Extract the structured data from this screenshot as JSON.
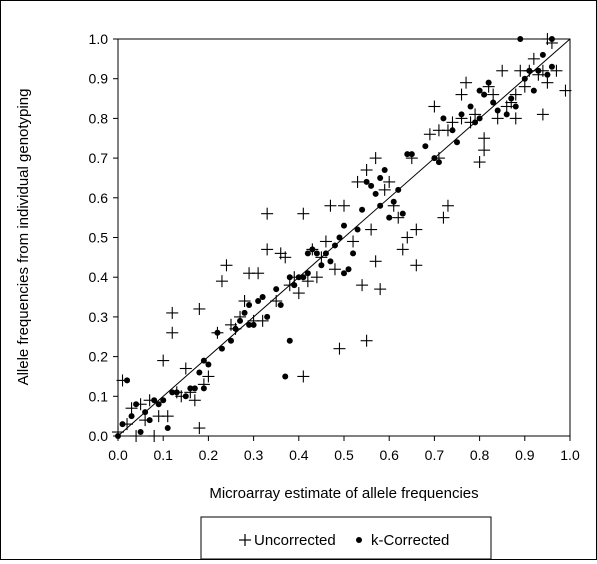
{
  "chart_data": {
    "type": "scatter",
    "title": "",
    "xlabel": "Microarray estimate of allele frequencies",
    "ylabel": "Allele frequencies from individual genotyping",
    "xlim": [
      0.0,
      1.0
    ],
    "ylim": [
      0.0,
      1.0
    ],
    "x_ticks": [
      "0.0",
      "0.1",
      "0.2",
      "0.3",
      "0.4",
      "0.5",
      "0.6",
      "0.7",
      "0.8",
      "0.9",
      "1.0"
    ],
    "y_ticks": [
      "0.0",
      "0.1",
      "0.2",
      "0.3",
      "0.4",
      "0.5",
      "0.6",
      "0.7",
      "0.8",
      "0.9",
      "1.0"
    ],
    "grid": false,
    "legend_position": "bottom",
    "reference_line": {
      "from": [
        0,
        0
      ],
      "to": [
        1,
        1
      ]
    },
    "series": [
      {
        "name": "Uncorrected",
        "marker": "plus",
        "color": "#000000",
        "points": [
          [
            0.0,
            0.01
          ],
          [
            0.01,
            0.14
          ],
          [
            0.02,
            0.03
          ],
          [
            0.03,
            0.07
          ],
          [
            0.04,
            0.0
          ],
          [
            0.05,
            0.08
          ],
          [
            0.06,
            0.04
          ],
          [
            0.07,
            0.09
          ],
          [
            0.08,
            0.0
          ],
          [
            0.09,
            0.05
          ],
          [
            0.1,
            0.19
          ],
          [
            0.11,
            0.05
          ],
          [
            0.12,
            0.26
          ],
          [
            0.12,
            0.31
          ],
          [
            0.13,
            0.11
          ],
          [
            0.14,
            0.1
          ],
          [
            0.15,
            0.17
          ],
          [
            0.16,
            0.11
          ],
          [
            0.17,
            0.09
          ],
          [
            0.18,
            0.32
          ],
          [
            0.18,
            0.02
          ],
          [
            0.19,
            0.13
          ],
          [
            0.2,
            0.15
          ],
          [
            0.22,
            0.26
          ],
          [
            0.23,
            0.39
          ],
          [
            0.24,
            0.43
          ],
          [
            0.25,
            0.28
          ],
          [
            0.26,
            0.27
          ],
          [
            0.27,
            0.3
          ],
          [
            0.28,
            0.34
          ],
          [
            0.29,
            0.41
          ],
          [
            0.3,
            0.29
          ],
          [
            0.31,
            0.41
          ],
          [
            0.32,
            0.29
          ],
          [
            0.33,
            0.47
          ],
          [
            0.33,
            0.56
          ],
          [
            0.35,
            0.34
          ],
          [
            0.36,
            0.46
          ],
          [
            0.37,
            0.45
          ],
          [
            0.38,
            0.38
          ],
          [
            0.39,
            0.4
          ],
          [
            0.4,
            0.36
          ],
          [
            0.41,
            0.15
          ],
          [
            0.41,
            0.56
          ],
          [
            0.42,
            0.39
          ],
          [
            0.43,
            0.47
          ],
          [
            0.44,
            0.4
          ],
          [
            0.45,
            0.45
          ],
          [
            0.46,
            0.49
          ],
          [
            0.47,
            0.58
          ],
          [
            0.48,
            0.42
          ],
          [
            0.49,
            0.22
          ],
          [
            0.5,
            0.58
          ],
          [
            0.52,
            0.49
          ],
          [
            0.53,
            0.64
          ],
          [
            0.54,
            0.38
          ],
          [
            0.55,
            0.24
          ],
          [
            0.55,
            0.67
          ],
          [
            0.56,
            0.52
          ],
          [
            0.57,
            0.7
          ],
          [
            0.57,
            0.44
          ],
          [
            0.58,
            0.37
          ],
          [
            0.59,
            0.62
          ],
          [
            0.6,
            0.64
          ],
          [
            0.61,
            0.58
          ],
          [
            0.62,
            0.55
          ],
          [
            0.63,
            0.47
          ],
          [
            0.64,
            0.5
          ],
          [
            0.65,
            0.7
          ],
          [
            0.66,
            0.43
          ],
          [
            0.66,
            0.52
          ],
          [
            0.69,
            0.76
          ],
          [
            0.7,
            0.83
          ],
          [
            0.71,
            0.7
          ],
          [
            0.71,
            0.77
          ],
          [
            0.72,
            0.55
          ],
          [
            0.73,
            0.77
          ],
          [
            0.73,
            0.58
          ],
          [
            0.74,
            0.79
          ],
          [
            0.76,
            0.86
          ],
          [
            0.76,
            0.8
          ],
          [
            0.77,
            0.89
          ],
          [
            0.78,
            0.79
          ],
          [
            0.79,
            0.81
          ],
          [
            0.8,
            0.69
          ],
          [
            0.81,
            0.75
          ],
          [
            0.81,
            0.72
          ],
          [
            0.82,
            0.88
          ],
          [
            0.83,
            0.86
          ],
          [
            0.84,
            0.8
          ],
          [
            0.85,
            0.92
          ],
          [
            0.86,
            0.83
          ],
          [
            0.87,
            0.84
          ],
          [
            0.88,
            0.86
          ],
          [
            0.88,
            0.8
          ],
          [
            0.89,
            0.92
          ],
          [
            0.9,
            0.88
          ],
          [
            0.91,
            0.92
          ],
          [
            0.92,
            0.95
          ],
          [
            0.93,
            0.91
          ],
          [
            0.94,
            0.81
          ],
          [
            0.94,
            0.92
          ],
          [
            0.95,
            0.89
          ],
          [
            0.95,
            1.0
          ],
          [
            0.97,
            0.92
          ],
          [
            0.99,
            0.87
          ],
          [
            0.96,
            0.99
          ]
        ]
      },
      {
        "name": "k-Corrected",
        "marker": "dot",
        "color": "#000000",
        "points": [
          [
            0.0,
            0.0
          ],
          [
            0.01,
            0.03
          ],
          [
            0.02,
            0.14
          ],
          [
            0.03,
            0.05
          ],
          [
            0.04,
            0.08
          ],
          [
            0.05,
            0.01
          ],
          [
            0.06,
            0.06
          ],
          [
            0.07,
            0.04
          ],
          [
            0.08,
            0.09
          ],
          [
            0.09,
            0.08
          ],
          [
            0.1,
            0.09
          ],
          [
            0.11,
            0.02
          ],
          [
            0.12,
            0.11
          ],
          [
            0.13,
            0.11
          ],
          [
            0.15,
            0.1
          ],
          [
            0.16,
            0.12
          ],
          [
            0.17,
            0.12
          ],
          [
            0.18,
            0.16
          ],
          [
            0.19,
            0.19
          ],
          [
            0.19,
            0.12
          ],
          [
            0.2,
            0.18
          ],
          [
            0.22,
            0.26
          ],
          [
            0.23,
            0.22
          ],
          [
            0.25,
            0.24
          ],
          [
            0.26,
            0.27
          ],
          [
            0.27,
            0.29
          ],
          [
            0.28,
            0.31
          ],
          [
            0.29,
            0.33
          ],
          [
            0.29,
            0.28
          ],
          [
            0.3,
            0.28
          ],
          [
            0.31,
            0.34
          ],
          [
            0.32,
            0.35
          ],
          [
            0.33,
            0.3
          ],
          [
            0.35,
            0.37
          ],
          [
            0.36,
            0.33
          ],
          [
            0.37,
            0.15
          ],
          [
            0.38,
            0.24
          ],
          [
            0.38,
            0.4
          ],
          [
            0.39,
            0.38
          ],
          [
            0.4,
            0.4
          ],
          [
            0.41,
            0.4
          ],
          [
            0.42,
            0.41
          ],
          [
            0.42,
            0.46
          ],
          [
            0.43,
            0.47
          ],
          [
            0.44,
            0.46
          ],
          [
            0.45,
            0.43
          ],
          [
            0.46,
            0.46
          ],
          [
            0.47,
            0.44
          ],
          [
            0.48,
            0.48
          ],
          [
            0.49,
            0.5
          ],
          [
            0.5,
            0.53
          ],
          [
            0.5,
            0.41
          ],
          [
            0.51,
            0.42
          ],
          [
            0.52,
            0.46
          ],
          [
            0.53,
            0.52
          ],
          [
            0.54,
            0.57
          ],
          [
            0.55,
            0.64
          ],
          [
            0.56,
            0.63
          ],
          [
            0.57,
            0.61
          ],
          [
            0.58,
            0.58
          ],
          [
            0.58,
            0.65
          ],
          [
            0.59,
            0.67
          ],
          [
            0.6,
            0.55
          ],
          [
            0.61,
            0.59
          ],
          [
            0.62,
            0.62
          ],
          [
            0.63,
            0.56
          ],
          [
            0.64,
            0.71
          ],
          [
            0.65,
            0.71
          ],
          [
            0.68,
            0.73
          ],
          [
            0.7,
            0.7
          ],
          [
            0.71,
            0.69
          ],
          [
            0.72,
            0.8
          ],
          [
            0.74,
            0.77
          ],
          [
            0.75,
            0.74
          ],
          [
            0.76,
            0.81
          ],
          [
            0.78,
            0.83
          ],
          [
            0.79,
            0.79
          ],
          [
            0.8,
            0.8
          ],
          [
            0.8,
            0.87
          ],
          [
            0.81,
            0.86
          ],
          [
            0.82,
            0.89
          ],
          [
            0.83,
            0.84
          ],
          [
            0.84,
            0.82
          ],
          [
            0.86,
            0.81
          ],
          [
            0.87,
            0.85
          ],
          [
            0.88,
            0.83
          ],
          [
            0.89,
            1.0
          ],
          [
            0.9,
            0.9
          ],
          [
            0.91,
            0.92
          ],
          [
            0.92,
            0.87
          ],
          [
            0.93,
            0.92
          ],
          [
            0.94,
            0.96
          ],
          [
            0.95,
            0.91
          ],
          [
            0.96,
            1.0
          ],
          [
            0.96,
            0.93
          ]
        ]
      }
    ]
  }
}
